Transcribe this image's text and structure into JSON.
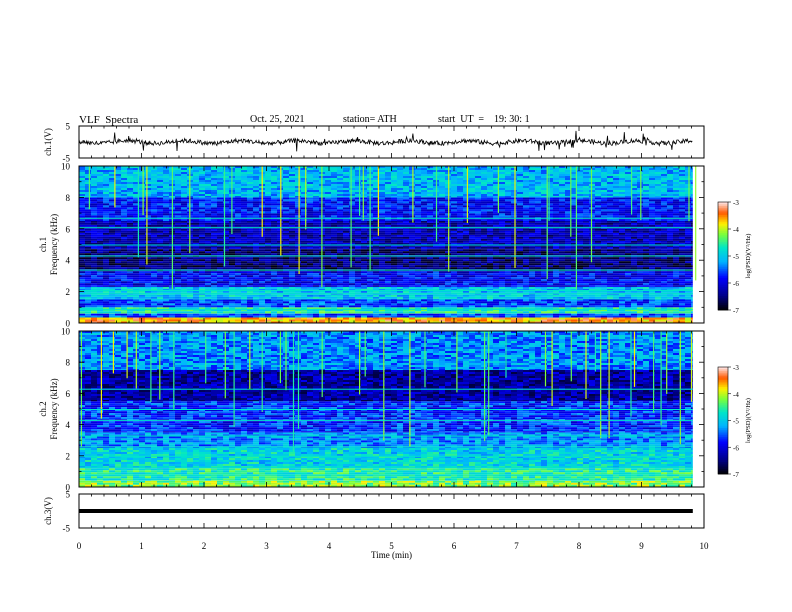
{
  "header": {
    "title": "VLF  Spectra",
    "date": "Oct. 25, 2021",
    "station": "station= ATH",
    "start": "start  UT  =    19: 30: 1"
  },
  "chart_data": [
    {
      "type": "line",
      "panel": "ch1-waveform",
      "ylabel": "ch.1(V)",
      "ylim": [
        -5,
        5
      ],
      "yticks": [
        "5",
        "-5"
      ],
      "x_range": [
        0,
        9.82
      ],
      "baseline": 0,
      "color": "#000000"
    },
    {
      "type": "heatmap",
      "panel": "ch1-spectrogram",
      "ylabel": "ch.1\nFrequency  (kHz)",
      "ylim": [
        0,
        10
      ],
      "yticks": [
        "0",
        "2",
        "4",
        "6",
        "8",
        "10"
      ],
      "colorbar": {
        "label": "log(PSD)(V²/Hz)",
        "range": [
          -7,
          -3
        ],
        "ticks": [
          "-3",
          "-4",
          "-5",
          "-6",
          "-7"
        ]
      },
      "bands_khz": [
        {
          "f": [
            0,
            0.35
          ],
          "level": -3.6
        },
        {
          "f": [
            0.35,
            0.6
          ],
          "level": -5.6
        },
        {
          "f": [
            0.6,
            1.0
          ],
          "level": -4.6
        },
        {
          "f": [
            1.0,
            1.5
          ],
          "level": -5.6
        },
        {
          "f": [
            1.5,
            2.3
          ],
          "level": -5.0
        },
        {
          "f": [
            2.3,
            3.3
          ],
          "level": -5.9
        },
        {
          "f": [
            3.3,
            4.7
          ],
          "level": -6.5
        },
        {
          "f": [
            4.7,
            6.5
          ],
          "level": -6.2
        },
        {
          "f": [
            6.5,
            8.0
          ],
          "level": -5.8
        },
        {
          "f": [
            8.0,
            10.0
          ],
          "level": -5.1
        }
      ]
    },
    {
      "type": "heatmap",
      "panel": "ch2-spectrogram",
      "ylabel": "ch.2\nFrequency  (kHz)",
      "ylim": [
        0,
        10
      ],
      "yticks": [
        "0",
        "2",
        "4",
        "6",
        "8",
        "10"
      ],
      "colorbar": {
        "label": "log(PSD)(V²/Hz)",
        "range": [
          -7,
          -3
        ],
        "ticks": [
          "-3",
          "-4",
          "-5",
          "-6",
          "-7"
        ]
      },
      "bands_khz": [
        {
          "f": [
            0,
            0.4
          ],
          "level": -4.2
        },
        {
          "f": [
            0.4,
            1.2
          ],
          "level": -4.6
        },
        {
          "f": [
            1.2,
            2.5
          ],
          "level": -4.9
        },
        {
          "f": [
            2.5,
            3.5
          ],
          "level": -5.3
        },
        {
          "f": [
            3.5,
            5.5
          ],
          "level": -5.7
        },
        {
          "f": [
            5.5,
            7.5
          ],
          "level": -6.3
        },
        {
          "f": [
            7.5,
            10.0
          ],
          "level": -5.3
        }
      ]
    },
    {
      "type": "line",
      "panel": "ch3-waveform",
      "ylabel": "ch.3(V)",
      "ylim": [
        -5,
        5
      ],
      "yticks": [
        "5",
        "-5"
      ],
      "x_range": [
        0,
        9.82
      ],
      "baseline": 0,
      "color": "#000000"
    }
  ],
  "x_axis": {
    "label": "Time  (min)",
    "range": [
      0,
      10
    ],
    "ticks": [
      "0",
      "1",
      "2",
      "3",
      "4",
      "5",
      "6",
      "7",
      "8",
      "9",
      "10"
    ]
  },
  "colors": {
    "axis": "#000000",
    "background": "#ffffff"
  }
}
